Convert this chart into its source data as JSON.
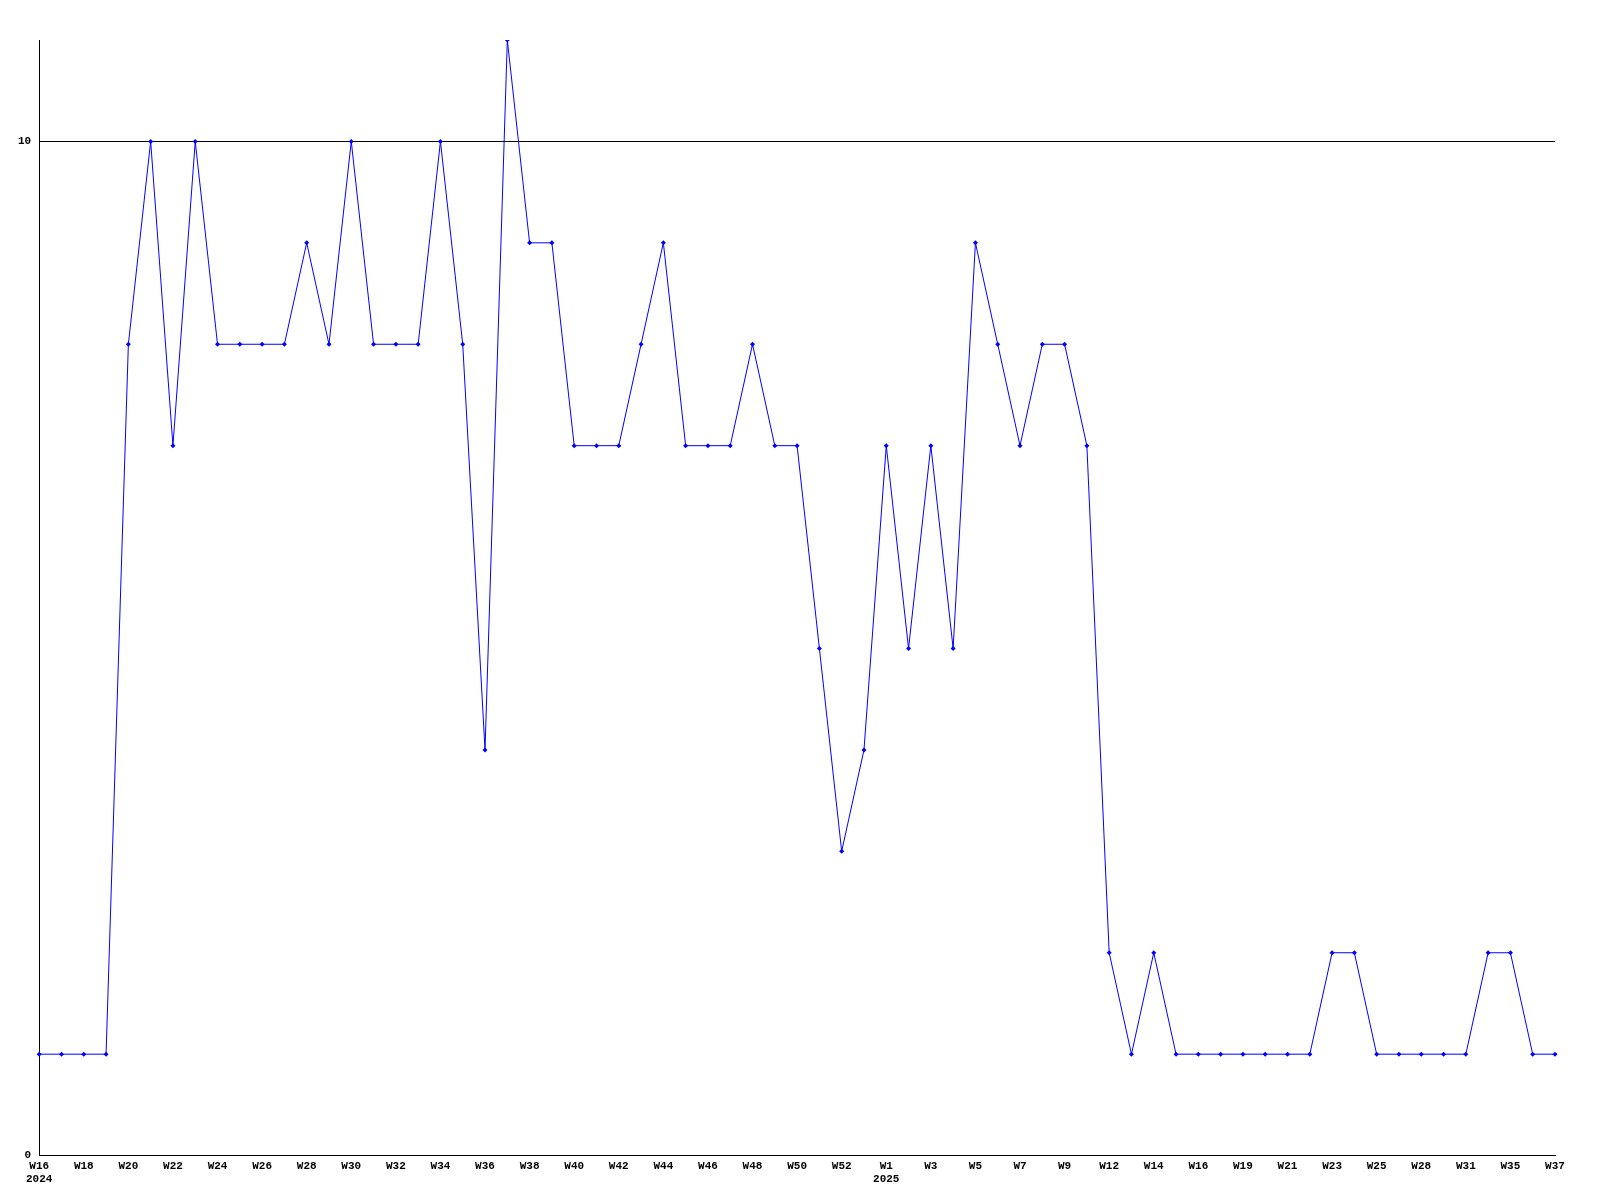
{
  "chart_data": {
    "type": "line",
    "categories": [
      "W16\n2024",
      null,
      "W18",
      null,
      "W20",
      null,
      "W22",
      null,
      "W24",
      null,
      "W26",
      null,
      "W28",
      null,
      "W30",
      null,
      "W32",
      null,
      "W34",
      null,
      "W36",
      null,
      "W38",
      null,
      "W40",
      null,
      "W42",
      null,
      "W44",
      null,
      "W46",
      null,
      "W48",
      null,
      "W50",
      null,
      "W52",
      null,
      "W1\n2025",
      null,
      "W3",
      null,
      "W5",
      null,
      "W7",
      null,
      "W9",
      null,
      "W12",
      null,
      "W14",
      null,
      "W16",
      null,
      "W19",
      null,
      "W21",
      null,
      "W23",
      null,
      "W25",
      null,
      "W28",
      null,
      "W31",
      null,
      "W35",
      null,
      "W37"
    ],
    "series": [
      {
        "color": "#0000ff",
        "values": [
          1,
          1,
          1,
          1,
          8,
          10,
          7,
          10,
          8,
          8,
          8,
          8,
          9,
          8,
          10,
          8,
          8,
          8,
          10,
          8,
          4,
          11,
          9,
          9,
          7,
          7,
          7,
          8,
          9,
          7,
          7,
          7,
          8,
          7,
          7,
          5,
          3,
          4,
          7,
          5,
          7,
          5,
          9,
          8,
          7,
          8,
          8,
          7,
          2,
          1,
          2,
          1,
          1,
          1,
          1,
          1,
          1,
          1,
          2,
          2,
          1,
          1,
          1,
          1,
          1,
          2,
          2,
          1,
          1
        ]
      }
    ],
    "ylim": [
      0,
      11
    ],
    "yticks": [
      0,
      10
    ],
    "grid": "y",
    "legend": false,
    "marker": "diamond",
    "line_style": "solid"
  }
}
